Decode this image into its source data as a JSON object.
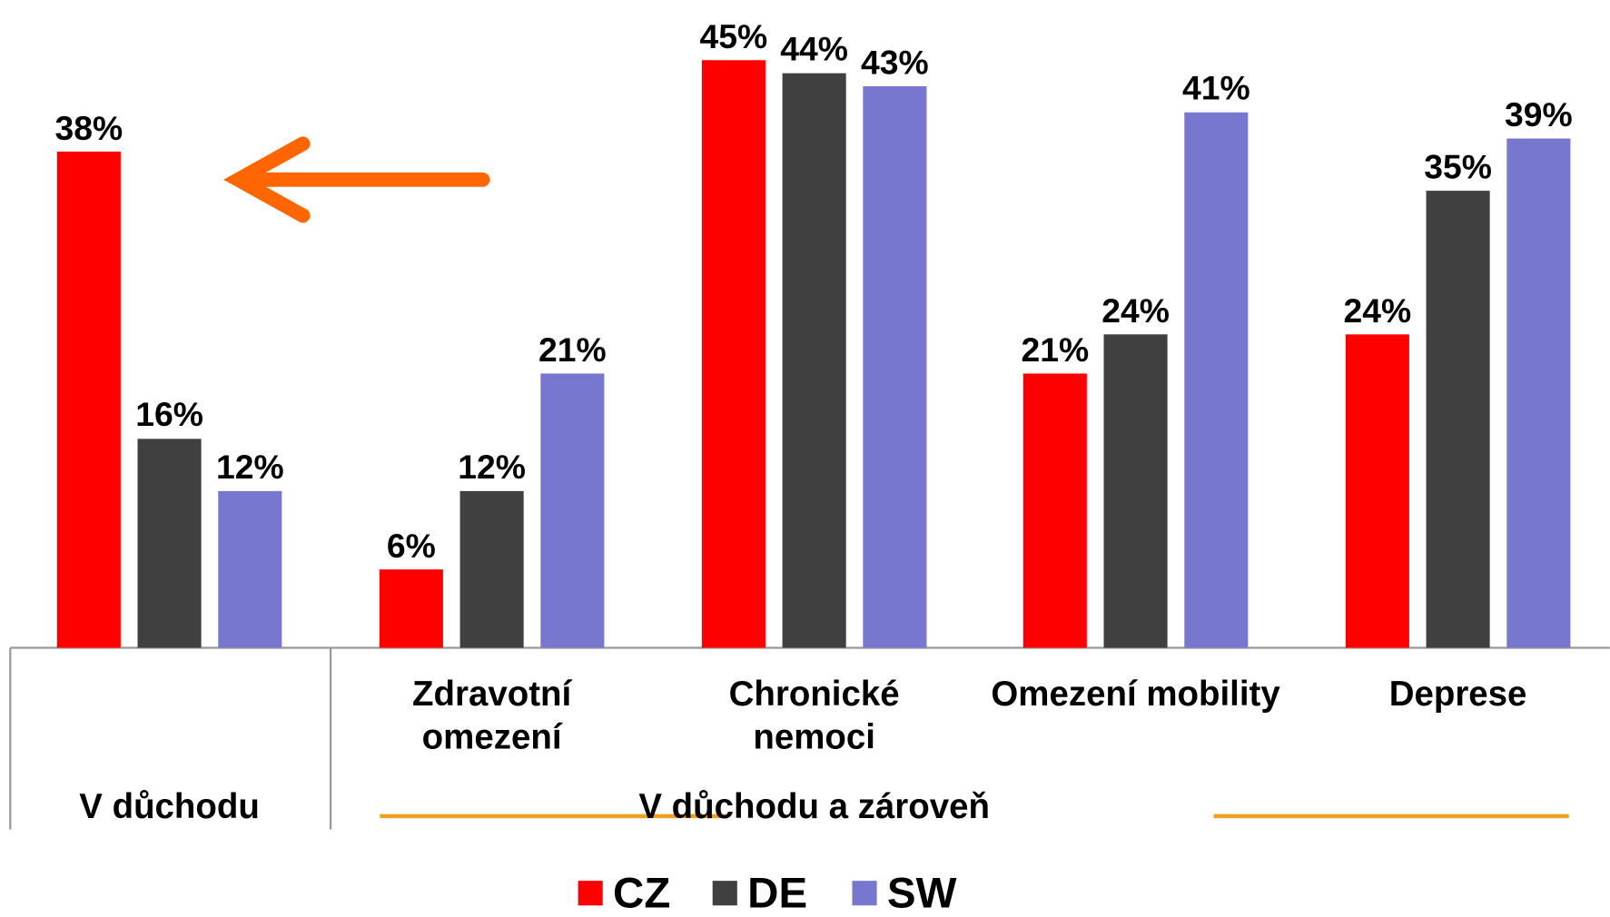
{
  "chart_data": {
    "type": "bar",
    "categories": [
      "V důchodu",
      "Zdravotní omezení",
      "Chronické nemoci",
      "Omezení mobility",
      "Deprese"
    ],
    "group_label": "V důchodu a zároveň",
    "series": [
      {
        "name": "CZ",
        "color": "#ff0000",
        "values": [
          38,
          6,
          45,
          21,
          24
        ],
        "value_labels": [
          "38%",
          "6%",
          "45%",
          "21%",
          "24%"
        ]
      },
      {
        "name": "DE",
        "color": "#404040",
        "values": [
          16,
          12,
          44,
          24,
          35
        ],
        "value_labels": [
          "16%",
          "12%",
          "44%",
          "24%",
          "35%"
        ]
      },
      {
        "name": "SW",
        "color": "#7777d0",
        "values": [
          12,
          21,
          43,
          41,
          39
        ],
        "value_labels": [
          "12%",
          "21%",
          "43%",
          "41%",
          "39%"
        ]
      }
    ],
    "ylim": [
      0,
      50
    ]
  }
}
